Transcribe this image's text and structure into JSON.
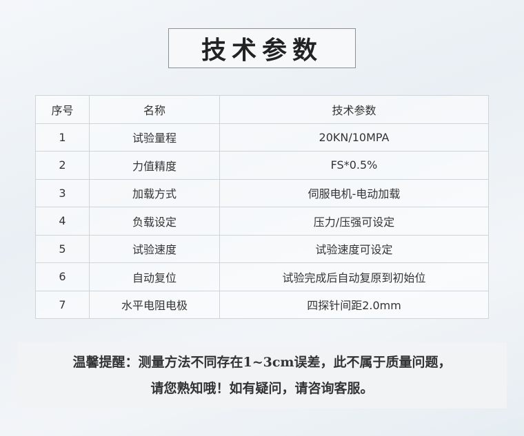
{
  "title": "技术参数",
  "table": {
    "headers": [
      "序号",
      "名称",
      "技术参数"
    ],
    "rows": [
      [
        "1",
        "试验量程",
        "20KN/10MPA"
      ],
      [
        "2",
        "力值精度",
        "FS*0.5%"
      ],
      [
        "3",
        "加载方式",
        "伺服电机-电动加载"
      ],
      [
        "4",
        "负载设定",
        "压力/压强可设定"
      ],
      [
        "5",
        "试验速度",
        "试验速度可设定"
      ],
      [
        "6",
        "自动复位",
        "试验完成后自动复原到初始位"
      ],
      [
        "7",
        "水平电阻电极",
        "四探针间距2.0mm"
      ]
    ]
  },
  "note": {
    "line1": "温馨提醒：测量方法不同存在1~3cm误差，此不属于质量问题，",
    "line2": "请您熟知哦！如有疑问，请咨询客服。"
  }
}
